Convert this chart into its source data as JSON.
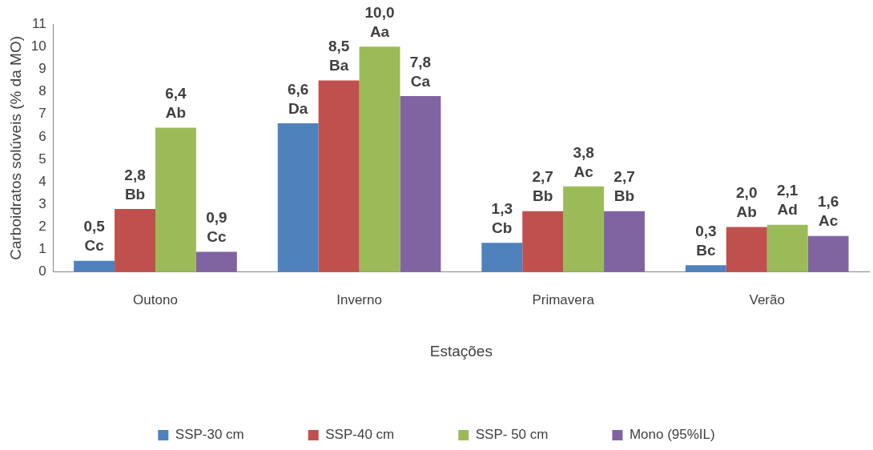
{
  "chart_data": {
    "type": "bar",
    "xlabel": "Estações",
    "ylabel": "Carboidratos solúveis (% da MO)",
    "categories": [
      "Outono",
      "Inverno",
      "Primavera",
      "Verão"
    ],
    "series": [
      {
        "name": "SSP-30 cm",
        "color": "#4f81bd",
        "values": [
          0.5,
          6.6,
          1.3,
          0.3
        ],
        "value_labels": [
          "0,5\nCc",
          "6,6\nDa",
          "1,3\nCb",
          "0,3\nBc"
        ]
      },
      {
        "name": "SSP-40 cm",
        "color": "#c0504d",
        "values": [
          2.8,
          8.5,
          2.7,
          2.0
        ],
        "value_labels": [
          "2,8\nBb",
          "8,5\nBa",
          "2,7\nBb",
          "2,0\nAb"
        ]
      },
      {
        "name": "SSP- 50 cm",
        "color": "#9bbb59",
        "values": [
          6.4,
          10.0,
          3.8,
          2.1
        ],
        "value_labels": [
          "6,4\nAb",
          "10,0\nAa",
          "3,8\nAc",
          "2,1\nAd"
        ]
      },
      {
        "name": "Mono (95%IL)",
        "color": "#8064a2",
        "values": [
          0.9,
          7.8,
          2.7,
          1.6
        ],
        "value_labels": [
          "0,9\nCc",
          "7,8\nCa",
          "2,7\nBb",
          "1,6\nAc"
        ]
      }
    ],
    "ylim": [
      0,
      11
    ],
    "yticks": [
      0,
      1,
      2,
      3,
      4,
      5,
      6,
      7,
      8,
      9,
      10,
      11
    ],
    "grid": false,
    "legend": "bottom"
  }
}
